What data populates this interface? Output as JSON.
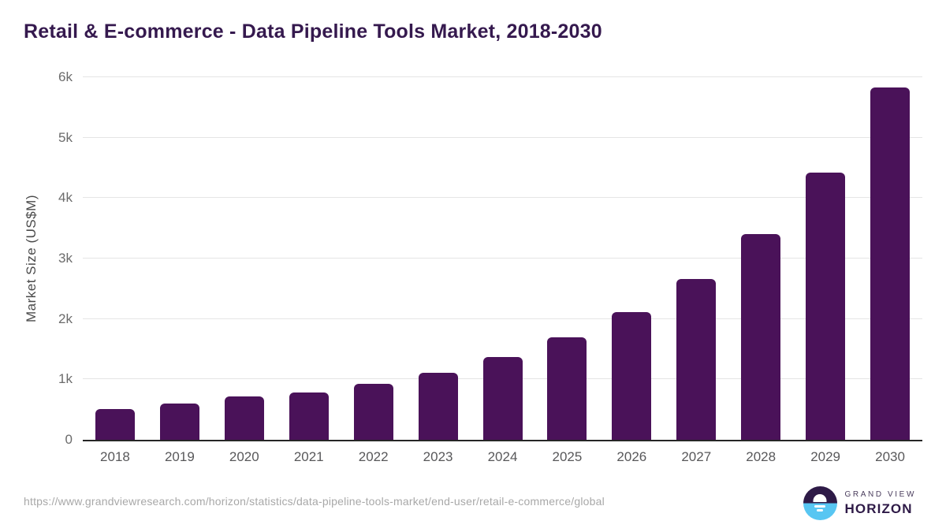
{
  "page": {
    "title": "Retail & E-commerce - Data Pipeline Tools Market, 2018-2030"
  },
  "chart_data": {
    "type": "bar",
    "title": "Retail & E-commerce - Data Pipeline Tools Market, 2018-2030",
    "categories": [
      "2018",
      "2019",
      "2020",
      "2021",
      "2022",
      "2023",
      "2024",
      "2025",
      "2026",
      "2027",
      "2028",
      "2029",
      "2030"
    ],
    "values": [
      505,
      600,
      715,
      780,
      920,
      1115,
      1370,
      1690,
      2110,
      2665,
      3405,
      4425,
      5825
    ],
    "xlabel": "",
    "ylabel": "Market Size (US$M)",
    "ylim": [
      0,
      6000
    ],
    "yticks": [
      {
        "value": 0,
        "label": "0"
      },
      {
        "value": 1000,
        "label": "1k"
      },
      {
        "value": 2000,
        "label": "2k"
      },
      {
        "value": 3000,
        "label": "3k"
      },
      {
        "value": 4000,
        "label": "4k"
      },
      {
        "value": 5000,
        "label": "5k"
      },
      {
        "value": 6000,
        "label": "6k"
      }
    ],
    "grid": true,
    "legend_position": "none",
    "bar_color": "#4a1259"
  },
  "footer": {
    "source_url": "https://www.grandviewresearch.com/horizon/statistics/data-pipeline-tools-market/end-user/retail-e-commerce/global",
    "logo": {
      "line1": "GRAND VIEW",
      "line2": "HORIZON"
    }
  },
  "colors": {
    "title_text": "#35194e",
    "bar": "#4a1259",
    "axis_line": "#262626",
    "gridline": "#e5e5e5",
    "y_tick_label": "#6b6b6b",
    "x_tick_label": "#58585a",
    "source_url_text": "#a8a8a8",
    "logo_purple": "#2e1a47",
    "logo_blue": "#58c6f2"
  }
}
